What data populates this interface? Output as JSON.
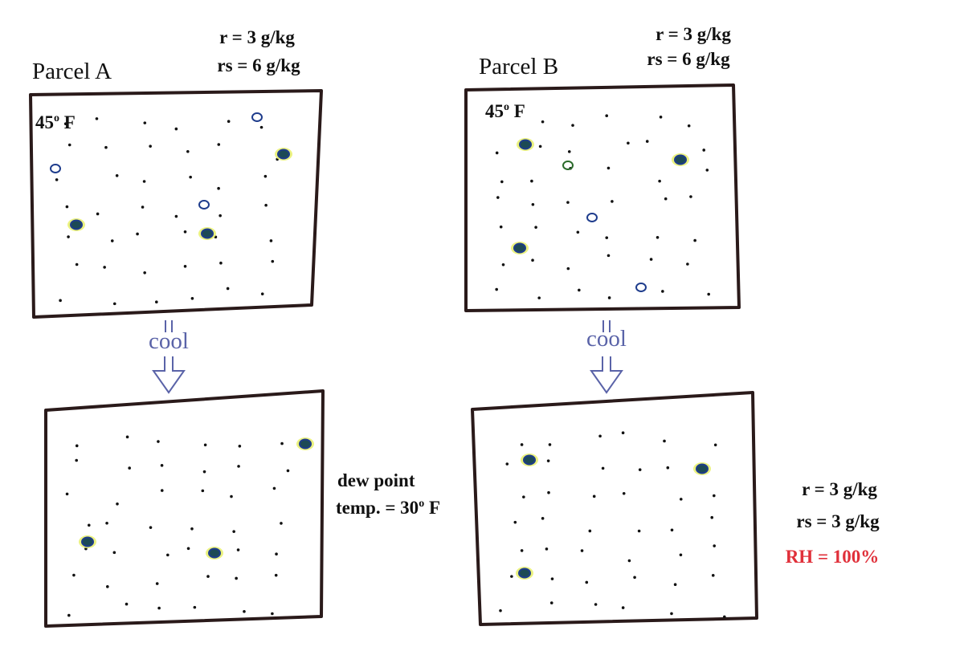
{
  "parcels": [
    {
      "label": "Parcel A",
      "r": "r = 3 g/kg",
      "rs": "rs = 6 g/kg",
      "temp": {
        "number": "45",
        "sup": "o",
        "unit": " F"
      },
      "process": "cool"
    },
    {
      "label": "Parcel B",
      "r": "r = 3 g/kg",
      "rs": "rs = 6 g/kg",
      "temp": {
        "number": "45",
        "sup": "o",
        "unit": " F"
      },
      "process": "cool"
    }
  ],
  "parcel_a_after": {
    "line1": "dew point",
    "line2": {
      "number": "temp. = 30",
      "sup": "o",
      "unit": " F"
    }
  },
  "parcel_b_after": {
    "r": "r = 3 g/kg",
    "rs": "rs = 3 g/kg",
    "rh": "RH = 100%"
  }
}
